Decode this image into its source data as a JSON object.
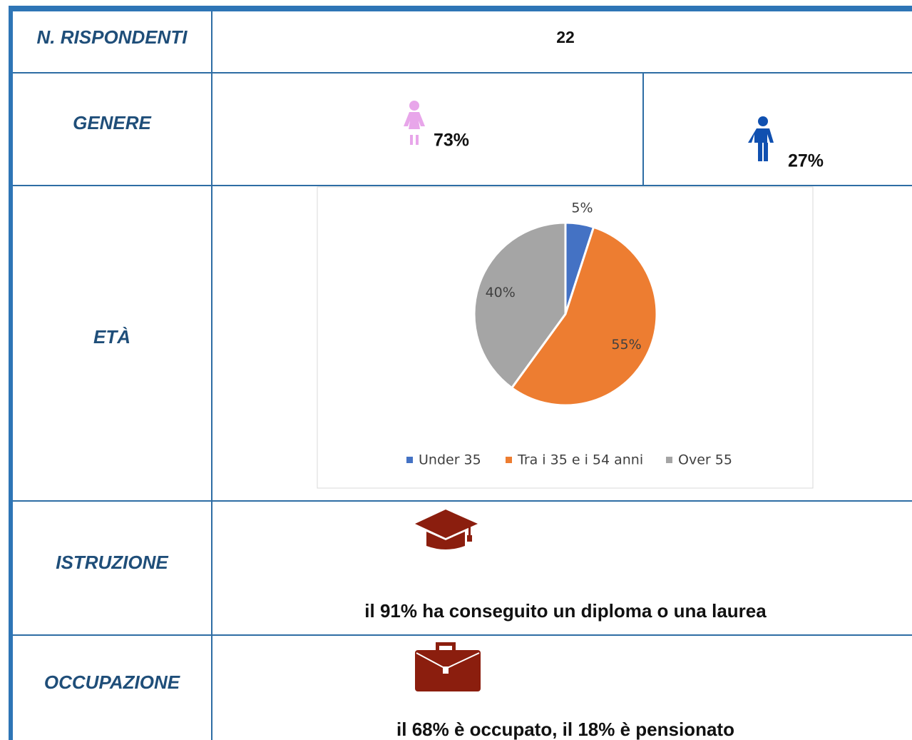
{
  "rispondenti": {
    "label": "N. RISPONDENTI",
    "value": "22"
  },
  "genere": {
    "label": "GENERE",
    "female": "73%",
    "male": "27%"
  },
  "eta": {
    "label": "ETÀ",
    "chart_data": {
      "type": "pie",
      "categories": [
        "Under 35",
        "Tra i 35 e i 54 anni",
        "Over 55"
      ],
      "values": [
        5,
        55,
        40
      ],
      "value_labels": [
        "5%",
        "55%",
        "40%"
      ],
      "colors": [
        "#4472c4",
        "#ed7d31",
        "#a5a5a5"
      ],
      "legend": "bottom"
    }
  },
  "istruzione": {
    "label": "ISTRUZIONE",
    "text": "il 91% ha conseguito un diploma o una laurea"
  },
  "occupazione": {
    "label": "OCCUPAZIONE",
    "text": "il 68% è occupato, il 18% è pensionato"
  }
}
